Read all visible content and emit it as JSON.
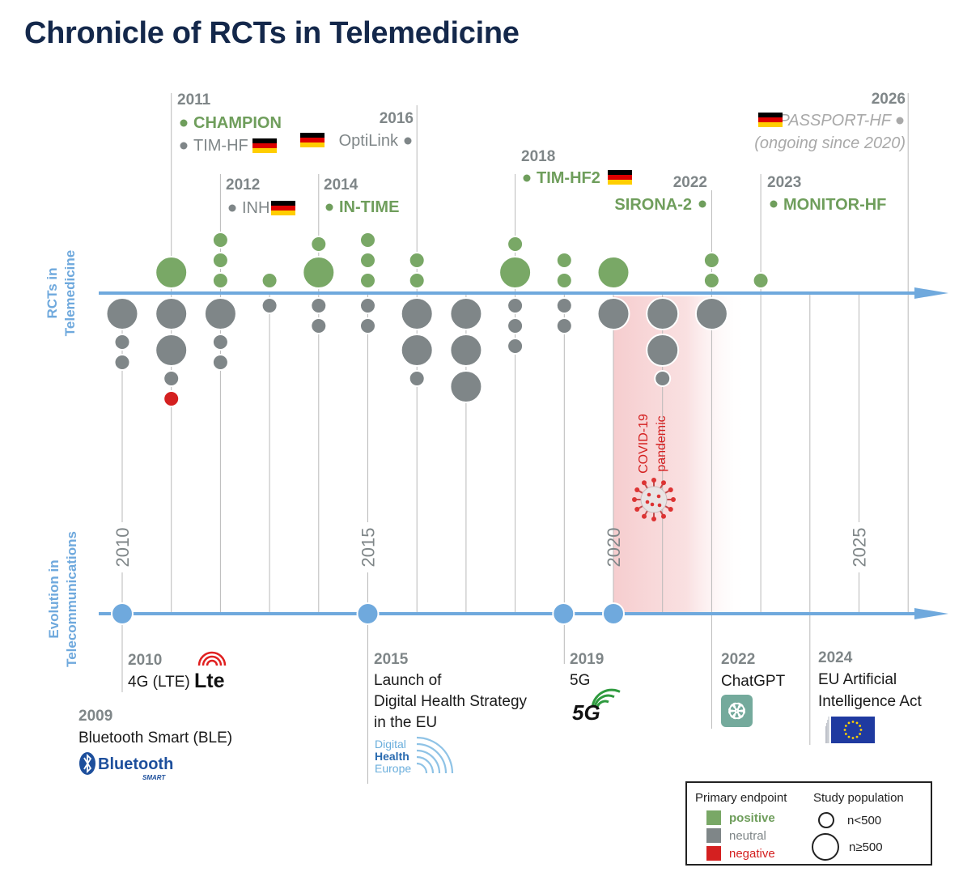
{
  "title": "Chronicle of RCTs in Telemedicine",
  "colors": {
    "positive": "#79a866",
    "neutral": "#7f8688",
    "negative": "#d42020",
    "timeline": "#6fa9dd",
    "study_text_positive": "#6f9e5c",
    "study_text_neutral": "#7f8688",
    "year_text": "#7f8688",
    "covid_text": "#d42020",
    "title": "#14284b"
  },
  "axis_labels": {
    "top": [
      "RCTs in",
      "Telemedicine"
    ],
    "bottom": [
      "Evolution in",
      "Telecommunications"
    ]
  },
  "timeline_years": [
    "2010",
    "2015",
    "2020",
    "2025"
  ],
  "studies": [
    {
      "year": "2011",
      "name": "CHAMPION",
      "outcome": "positive",
      "flag": false
    },
    {
      "year": "",
      "name": "TIM-HF",
      "outcome": "neutral",
      "flag": true
    },
    {
      "year": "2012",
      "name": "INH",
      "outcome": "neutral",
      "flag": true
    },
    {
      "year": "2014",
      "name": "IN-TIME",
      "outcome": "positive",
      "flag": false
    },
    {
      "year": "2016",
      "name": "OptiLink",
      "outcome": "neutral",
      "flag": true
    },
    {
      "year": "2018",
      "name": "TIM-HF2",
      "outcome": "positive",
      "flag": true
    },
    {
      "year": "2022",
      "name": "SIRONA-2",
      "outcome": "positive",
      "flag": false
    },
    {
      "year": "2023",
      "name": "MONITOR-HF",
      "outcome": "positive",
      "flag": false
    },
    {
      "year": "2026",
      "name": "PASSPORT-HF",
      "note": "(ongoing since 2020)",
      "outcome": "neutral",
      "flag": true
    }
  ],
  "chart_data": {
    "type": "bubble-timeline",
    "description": "RCTs per year; above axis = positive primary endpoint, below axis = neutral/negative; large bubble = n≥500, small = n<500",
    "columns": [
      {
        "year": 2010,
        "positive": [],
        "other": [
          [
            "neutral",
            "large"
          ],
          [
            "neutral",
            "small"
          ],
          [
            "neutral",
            "small"
          ]
        ]
      },
      {
        "year": 2011,
        "positive": [
          [
            "positive",
            "large"
          ]
        ],
        "other": [
          [
            "neutral",
            "large"
          ],
          [
            "neutral",
            "large"
          ],
          [
            "neutral",
            "small"
          ],
          [
            "negative",
            "small"
          ]
        ]
      },
      {
        "year": 2012,
        "positive": [
          [
            "positive",
            "small"
          ],
          [
            "positive",
            "small"
          ],
          [
            "positive",
            "small"
          ]
        ],
        "other": [
          [
            "neutral",
            "large"
          ],
          [
            "neutral",
            "small"
          ],
          [
            "neutral",
            "small"
          ]
        ]
      },
      {
        "year": 2013,
        "positive": [
          [
            "positive",
            "small"
          ]
        ],
        "other": [
          [
            "neutral",
            "small"
          ]
        ]
      },
      {
        "year": 2014,
        "positive": [
          [
            "positive",
            "large"
          ],
          [
            "positive",
            "small"
          ]
        ],
        "other": [
          [
            "neutral",
            "small"
          ],
          [
            "neutral",
            "small"
          ]
        ]
      },
      {
        "year": 2015,
        "positive": [
          [
            "positive",
            "small"
          ],
          [
            "positive",
            "small"
          ],
          [
            "positive",
            "small"
          ]
        ],
        "other": [
          [
            "neutral",
            "small"
          ],
          [
            "neutral",
            "small"
          ]
        ]
      },
      {
        "year": 2016,
        "positive": [
          [
            "positive",
            "small"
          ],
          [
            "positive",
            "small"
          ]
        ],
        "other": [
          [
            "neutral",
            "large"
          ],
          [
            "neutral",
            "large"
          ],
          [
            "neutral",
            "small"
          ]
        ]
      },
      {
        "year": 2017,
        "positive": [],
        "other": [
          [
            "neutral",
            "large"
          ],
          [
            "neutral",
            "large"
          ],
          [
            "neutral",
            "large"
          ]
        ]
      },
      {
        "year": 2018,
        "positive": [
          [
            "positive",
            "large"
          ],
          [
            "positive",
            "small"
          ]
        ],
        "other": [
          [
            "neutral",
            "small"
          ],
          [
            "neutral",
            "small"
          ],
          [
            "neutral",
            "small"
          ]
        ]
      },
      {
        "year": 2019,
        "positive": [
          [
            "positive",
            "small"
          ],
          [
            "positive",
            "small"
          ]
        ],
        "other": [
          [
            "neutral",
            "small"
          ],
          [
            "neutral",
            "small"
          ]
        ]
      },
      {
        "year": 2020,
        "positive": [
          [
            "positive",
            "large"
          ]
        ],
        "other": [
          [
            "neutral",
            "large"
          ]
        ]
      },
      {
        "year": 2021,
        "positive": [],
        "other": [
          [
            "neutral",
            "large"
          ],
          [
            "neutral",
            "large"
          ],
          [
            "neutral",
            "small"
          ]
        ]
      },
      {
        "year": 2022,
        "positive": [
          [
            "positive",
            "small"
          ],
          [
            "positive",
            "small"
          ]
        ],
        "other": [
          [
            "neutral",
            "large"
          ]
        ]
      },
      {
        "year": 2023,
        "positive": [
          [
            "positive",
            "small"
          ]
        ],
        "other": []
      }
    ]
  },
  "covid": {
    "line1": "COVID-19",
    "line2": "pandemic"
  },
  "milestones": [
    {
      "year": "2010",
      "label": "4G (LTE)",
      "logo": "lte-logo"
    },
    {
      "year": "2009",
      "label": "Bluetooth Smart (BLE)",
      "logo": "bluetooth-logo",
      "logo_text": "Bluetooth",
      "logo_sub": "SMART"
    },
    {
      "year": "2015",
      "lines": [
        "Launch of",
        "Digital Health Strategy",
        "in the EU"
      ],
      "logo": "digital-health-europe-logo",
      "logo_lines": [
        "Digital",
        "Health",
        "Europe"
      ]
    },
    {
      "year": "2019",
      "label": "5G",
      "logo": "5g-logo",
      "logo_text": "5G"
    },
    {
      "year": "2022",
      "label": "ChatGPT",
      "logo": "chatgpt-logo"
    },
    {
      "year": "2024",
      "lines": [
        "EU Artificial",
        "Intelligence Act"
      ],
      "logo": "eu-ai-act-logo"
    }
  ],
  "legend": {
    "endpoint_title": "Primary endpoint",
    "positive": "positive",
    "neutral": "neutral",
    "negative": "negative",
    "population_title": "Study population",
    "small": "n<500",
    "large": "n≥500"
  }
}
